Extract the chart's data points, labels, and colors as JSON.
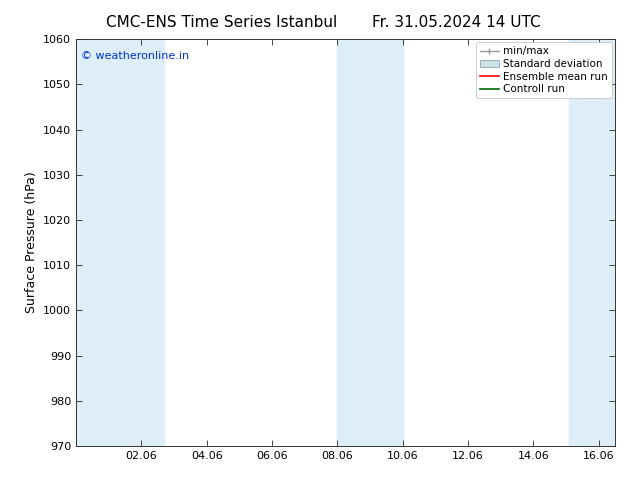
{
  "title_left": "CMC-ENS Time Series Istanbul",
  "title_right": "Fr. 31.05.2024 14 UTC",
  "ylabel": "Surface Pressure (hPa)",
  "ylim": [
    970,
    1060
  ],
  "yticks": [
    970,
    980,
    990,
    1000,
    1010,
    1020,
    1030,
    1040,
    1050,
    1060
  ],
  "xlim": [
    0.0,
    16.5
  ],
  "xticks": [
    2,
    4,
    6,
    8,
    10,
    12,
    14,
    16
  ],
  "xticklabels": [
    "02.06",
    "04.06",
    "06.06",
    "08.06",
    "10.06",
    "12.06",
    "14.06",
    "16.06"
  ],
  "shaded_bands": [
    {
      "x_start": 0.0,
      "x_end": 2.7,
      "color": "#ddeef9"
    },
    {
      "x_start": 8.0,
      "x_end": 10.0,
      "color": "#ddeef9"
    },
    {
      "x_start": 15.1,
      "x_end": 16.5,
      "color": "#ddeef9"
    }
  ],
  "watermark_text": "© weatheronline.in",
  "watermark_color": "#0033cc",
  "legend_entries": [
    "min/max",
    "Standard deviation",
    "Ensemble mean run",
    "Controll run"
  ],
  "background_color": "#ffffff",
  "minmax_color": "#999999",
  "std_face_color": "#cce0f0",
  "std_edge_color": "#aaaaaa",
  "ens_color": "#ff0000",
  "ctrl_color": "#006600",
  "title_fontsize": 11,
  "label_fontsize": 9,
  "tick_fontsize": 8,
  "legend_fontsize": 7.5
}
